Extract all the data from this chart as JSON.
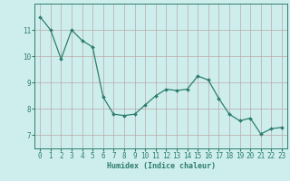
{
  "x": [
    0,
    1,
    2,
    3,
    4,
    5,
    6,
    7,
    8,
    9,
    10,
    11,
    12,
    13,
    14,
    15,
    16,
    17,
    18,
    19,
    20,
    21,
    22,
    23
  ],
  "y": [
    11.5,
    11.0,
    9.9,
    11.0,
    10.6,
    10.35,
    8.45,
    7.8,
    7.75,
    7.8,
    8.15,
    8.5,
    8.75,
    8.7,
    8.75,
    9.25,
    9.1,
    8.4,
    7.8,
    7.55,
    7.65,
    7.05,
    7.25,
    7.3
  ],
  "line_color": "#2e7d6e",
  "marker": "D",
  "markersize": 2.0,
  "linewidth": 0.9,
  "bg_color": "#ceeeed",
  "grid_color": "#b8a8a8",
  "axis_color": "#2e7d6e",
  "xlabel": "Humidex (Indice chaleur)",
  "xlabel_fontsize": 6.0,
  "tick_fontsize": 5.5,
  "ylim": [
    6.5,
    12.0
  ],
  "xlim": [
    -0.5,
    23.5
  ],
  "yticks": [
    7,
    8,
    9,
    10,
    11
  ],
  "xticks": [
    0,
    1,
    2,
    3,
    4,
    5,
    6,
    7,
    8,
    9,
    10,
    11,
    12,
    13,
    14,
    15,
    16,
    17,
    18,
    19,
    20,
    21,
    22,
    23
  ]
}
